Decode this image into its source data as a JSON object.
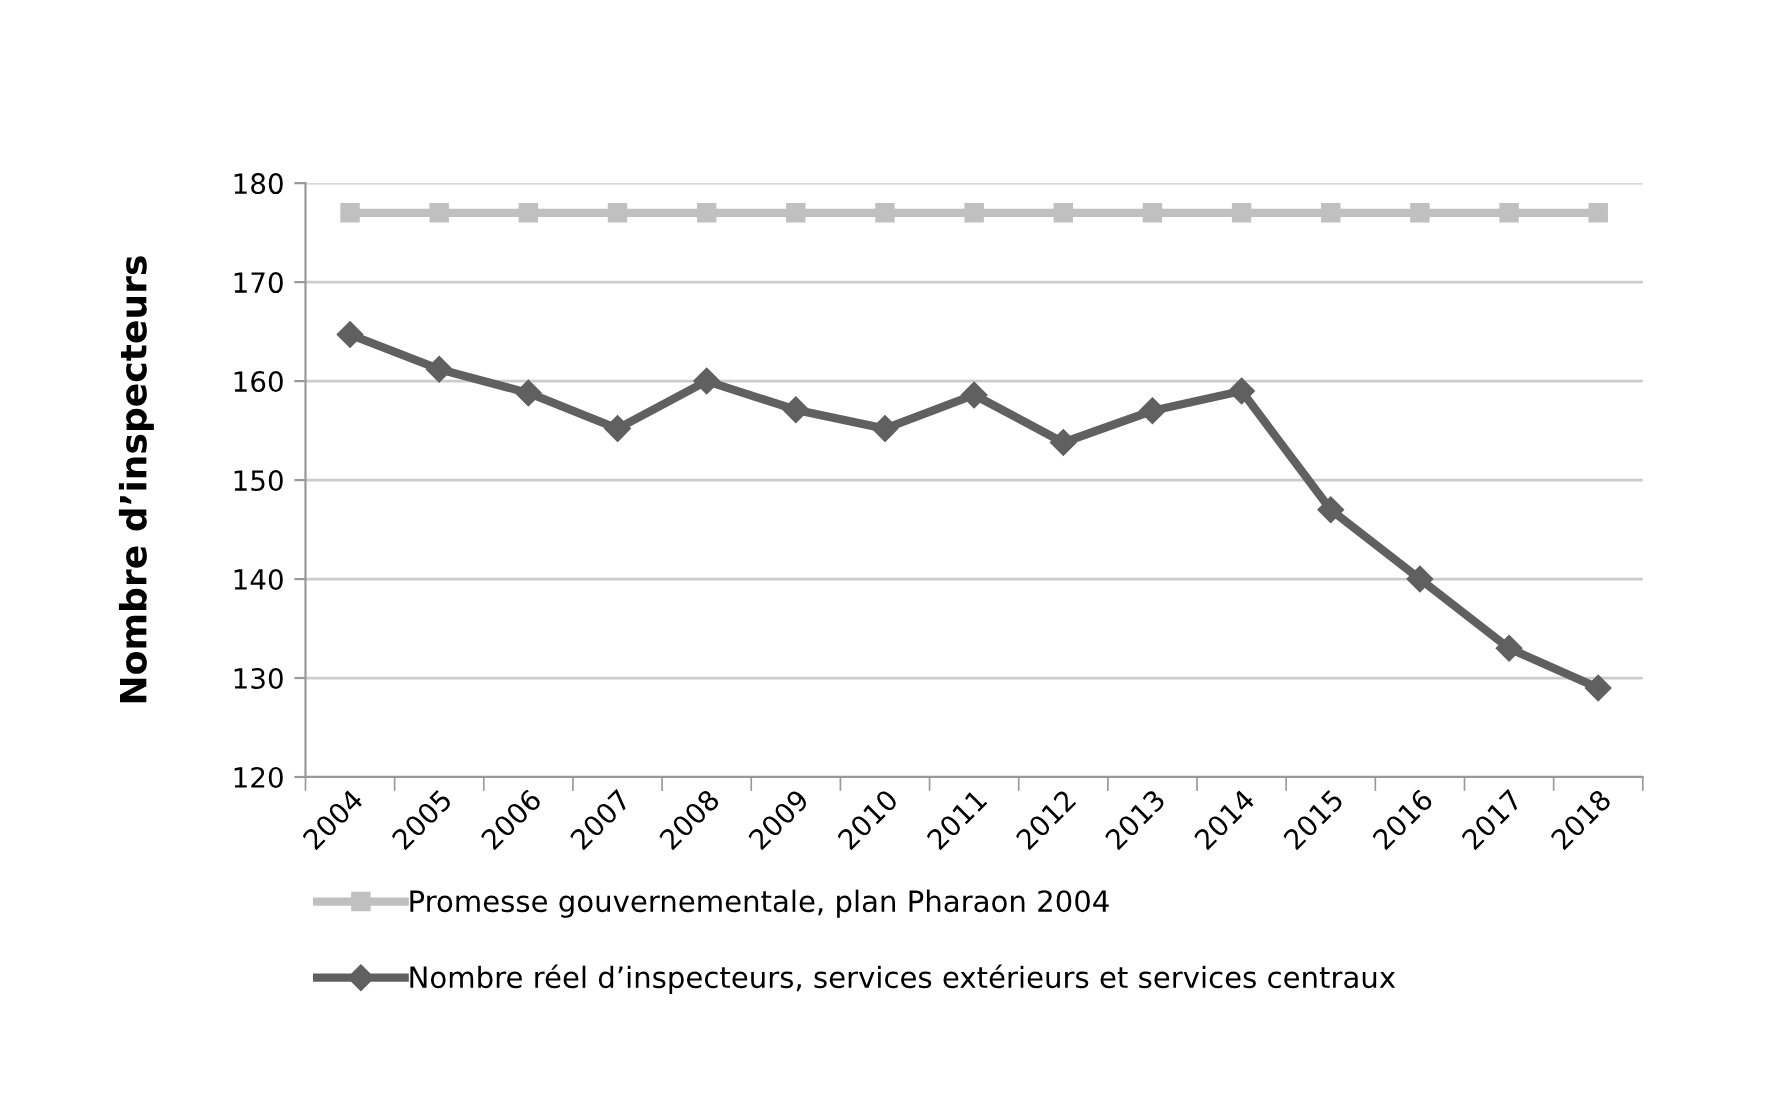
{
  "chart_data": {
    "type": "line",
    "ylabel": "Nombre d’inspecteurs",
    "categories": [
      "2004",
      "2005",
      "2006",
      "2007",
      "2008",
      "2009",
      "2010",
      "2011",
      "2012",
      "2013",
      "2014",
      "2015",
      "2016",
      "2017",
      "2018"
    ],
    "series": [
      {
        "name": "Promesse gouvernementale, plan Pharaon 2004",
        "color": "#c0c0c0",
        "marker": "square",
        "values": [
          177,
          177,
          177,
          177,
          177,
          177,
          177,
          177,
          177,
          177,
          177,
          177,
          177,
          177,
          177
        ]
      },
      {
        "name": "Nombre réel d’inspecteurs, services extérieurs et services centraux",
        "color": "#606060",
        "marker": "diamond",
        "values": [
          164.7,
          161.2,
          158.8,
          155.2,
          160,
          157.1,
          155.2,
          158.6,
          153.8,
          157,
          159,
          147,
          140,
          133,
          129
        ]
      }
    ],
    "ylim": [
      120,
      180
    ],
    "yticks": [
      120,
      130,
      140,
      150,
      160,
      170,
      180
    ],
    "grid": "y",
    "legend": "bottom",
    "line_style": "solid"
  }
}
